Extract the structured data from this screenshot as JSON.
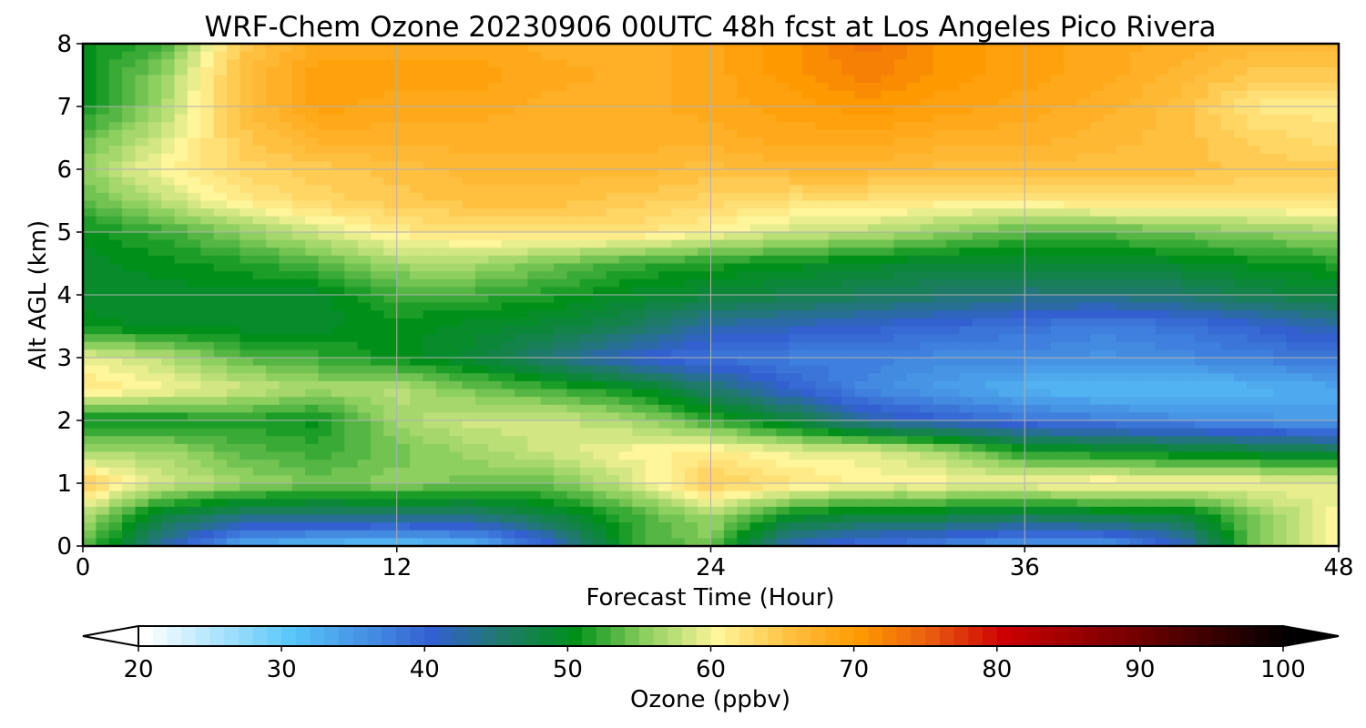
{
  "chart_data": {
    "type": "heatmap",
    "title": "WRF-Chem Ozone  20230906 00UTC 48h fcst at Los Angeles Pico Rivera",
    "xlabel": "Forecast Time (Hour)",
    "ylabel": "Alt AGL (km)",
    "xlim": [
      0,
      48
    ],
    "ylim": [
      0,
      8
    ],
    "xticks": [
      0,
      12,
      24,
      36,
      48
    ],
    "yticks": [
      0,
      1,
      2,
      3,
      4,
      5,
      6,
      7,
      8
    ],
    "grid": true,
    "colorbar": {
      "label": "Ozone  (ppbv)",
      "orientation": "horizontal",
      "placement": "bottom",
      "min": 20,
      "max": 100,
      "ticks": [
        20,
        30,
        40,
        50,
        60,
        70,
        80,
        90,
        100
      ],
      "extend": "both",
      "under_color": "#ffffff",
      "over_color": "#000000",
      "colorscale": [
        [
          20,
          "#ffffff"
        ],
        [
          30,
          "#5ac8fa"
        ],
        [
          40,
          "#3360d0"
        ],
        [
          45,
          "#1f7a6a"
        ],
        [
          50,
          "#00901a"
        ],
        [
          55,
          "#8ed060"
        ],
        [
          60,
          "#fff59a"
        ],
        [
          65,
          "#ffc040"
        ],
        [
          70,
          "#ff9900"
        ],
        [
          75,
          "#e85a10"
        ],
        [
          80,
          "#cc0000"
        ],
        [
          90,
          "#6a0000"
        ],
        [
          100,
          "#000000"
        ]
      ]
    },
    "x": [
      0,
      3,
      6,
      9,
      12,
      15,
      18,
      21,
      24,
      27,
      30,
      33,
      36,
      39,
      42,
      45,
      48
    ],
    "y": [
      0,
      0.5,
      1,
      1.5,
      2,
      2.5,
      3,
      3.5,
      4,
      4.5,
      5,
      5.5,
      6,
      6.5,
      7,
      7.5,
      8
    ],
    "z": [
      [
        54,
        42,
        33,
        31,
        30,
        32,
        40,
        52,
        54,
        41,
        38,
        36,
        34,
        34,
        40,
        55,
        60
      ],
      [
        57,
        48,
        45,
        45,
        45,
        45,
        48,
        52,
        56,
        50,
        48,
        48,
        47,
        48,
        48,
        55,
        60
      ],
      [
        64,
        58,
        56,
        54,
        55,
        54,
        54,
        58,
        64,
        62,
        60,
        60,
        60,
        61,
        60,
        60,
        59
      ],
      [
        56,
        56,
        53,
        52,
        54,
        56,
        58,
        60,
        61,
        59,
        59,
        56,
        51,
        50,
        49,
        48,
        47
      ],
      [
        50,
        50,
        51,
        50,
        56,
        58,
        58,
        56,
        52,
        48,
        42,
        40,
        38,
        37,
        36,
        35,
        34
      ],
      [
        62,
        60,
        58,
        56,
        57,
        54,
        52,
        50,
        45,
        40,
        36,
        34,
        32,
        31,
        31,
        32,
        33
      ],
      [
        59,
        57,
        53,
        52,
        50,
        48,
        44,
        40,
        38,
        37,
        37,
        36,
        36,
        35,
        36,
        37,
        38
      ],
      [
        50,
        49,
        49,
        49,
        50,
        49,
        48,
        46,
        42,
        41,
        40,
        39,
        38,
        37,
        38,
        40,
        42
      ],
      [
        49,
        49,
        49,
        49,
        52,
        52,
        51,
        49,
        48,
        47,
        46,
        45,
        44,
        44,
        45,
        47,
        48
      ],
      [
        49,
        50,
        51,
        53,
        56,
        56,
        54,
        52,
        51,
        50,
        49,
        48,
        48,
        48,
        49,
        50,
        51
      ],
      [
        50,
        52,
        55,
        58,
        61,
        62,
        62,
        62,
        60,
        58,
        57,
        55,
        53,
        53,
        54,
        55,
        56
      ],
      [
        53,
        57,
        61,
        63,
        64,
        65,
        65,
        64,
        63,
        62,
        62,
        61,
        61,
        62,
        62,
        62,
        62
      ],
      [
        55,
        60,
        63,
        64,
        65,
        66,
        66,
        66,
        65,
        66,
        66,
        65,
        65,
        65,
        65,
        64,
        64
      ],
      [
        53,
        58,
        64,
        67,
        67,
        67,
        67,
        67,
        67,
        68,
        68,
        67,
        67,
        66,
        65,
        63,
        62
      ],
      [
        50,
        56,
        65,
        69,
        68,
        68,
        67,
        67,
        68,
        69,
        70,
        69,
        68,
        67,
        65,
        61,
        61
      ],
      [
        50,
        55,
        65,
        69,
        69,
        69,
        68,
        67,
        68,
        70,
        72,
        70,
        69,
        68,
        66,
        64,
        64
      ],
      [
        50,
        52,
        64,
        68,
        68,
        68,
        67,
        67,
        68,
        70,
        73,
        70,
        69,
        68,
        67,
        66,
        66
      ]
    ]
  }
}
